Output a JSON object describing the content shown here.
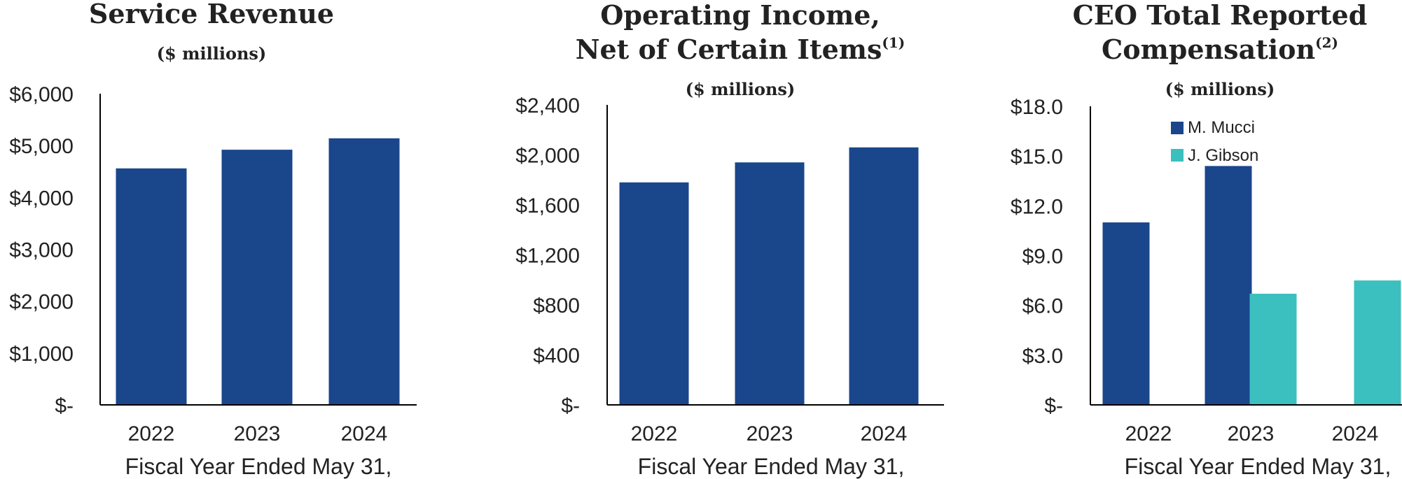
{
  "colors": {
    "primary": "#1a468c",
    "secondary": "#3bbfbf",
    "axis": "#000000"
  },
  "chart_data": [
    {
      "type": "bar",
      "title": "Service Revenue",
      "subtitle": "($ millions)",
      "categories": [
        "2022",
        "2023",
        "2024"
      ],
      "series": [
        {
          "values": [
            4560,
            4920,
            5140
          ]
        }
      ],
      "ylim": [
        0,
        6000
      ],
      "yticks": [
        "$-",
        "$1,000",
        "$2,000",
        "$3,000",
        "$4,000",
        "$5,000",
        "$6,000"
      ],
      "xlabel": "Fiscal Year Ended May 31,",
      "ylabel": ""
    },
    {
      "type": "bar",
      "title": "Operating Income,",
      "title_line2": "Net of Certain Items",
      "title_sup": "(1)",
      "subtitle": "($ millions)",
      "categories": [
        "2022",
        "2023",
        "2024"
      ],
      "series": [
        {
          "values": [
            1780,
            1940,
            2060
          ]
        }
      ],
      "ylim": [
        0,
        2400
      ],
      "yticks": [
        "$-",
        "$400",
        "$800",
        "$1,200",
        "$1,600",
        "$2,000",
        "$2,400"
      ],
      "xlabel": "Fiscal Year Ended May 31,",
      "ylabel": ""
    },
    {
      "type": "bar",
      "title": "CEO Total Reported",
      "title_line2": "Compensation",
      "title_sup": "(2)",
      "subtitle": "($ millions)",
      "categories": [
        "2022",
        "2023",
        "2024"
      ],
      "series": [
        {
          "name": "M. Mucci",
          "values": [
            11.0,
            14.4,
            null
          ]
        },
        {
          "name": "J. Gibson",
          "values": [
            null,
            6.7,
            7.5
          ]
        }
      ],
      "ylim": [
        0,
        18
      ],
      "yticks": [
        "$-",
        "$3.0",
        "$6.0",
        "$9.0",
        "$12.0",
        "$15.0",
        "$18.0"
      ],
      "legend": "top-left",
      "xlabel": "Fiscal Year Ended May 31,",
      "ylabel": ""
    }
  ]
}
